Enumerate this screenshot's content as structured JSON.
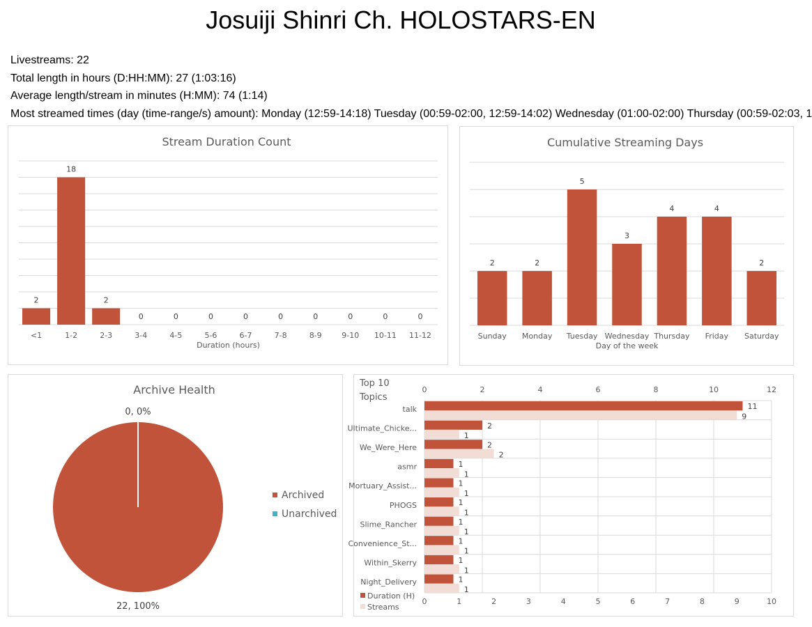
{
  "page": {
    "title": "Josuiji Shinri Ch. HOLOSTARS-EN",
    "stats": {
      "livestreams": "Livestreams: 22",
      "total_length": "Total length in hours (D:HH:MM): 27 (1:03:16)",
      "average_length": "Average length/stream in minutes (H:MM): 74 (1:14)",
      "most_streamed": "Most streamed times (day (time-range/s) amount): Monday (12:59-14:18) Tuesday (00:59-02:00, 12:59-14:02) Wednesday (01:00-02:00) Thursday (00:59-02:03, 1"
    }
  },
  "colors": {
    "primary": "#c0533a",
    "secondary": "#f2dcd6",
    "unarchived": "#4bacc6",
    "grid": "#d9d9d9",
    "axis_text": "#595959"
  },
  "chart_data": [
    {
      "type": "bar",
      "title": "Stream Duration Count",
      "xlabel": "Duration (hours)",
      "ylabel": "",
      "categories": [
        "<1",
        "1-2",
        "2-3",
        "3-4",
        "4-5",
        "5-6",
        "6-7",
        "7-8",
        "8-9",
        "9-10",
        "10-11",
        "11-12"
      ],
      "values": [
        2,
        18,
        2,
        0,
        0,
        0,
        0,
        0,
        0,
        0,
        0,
        0
      ],
      "ylim": [
        0,
        20
      ],
      "grid": true,
      "data_labels": true
    },
    {
      "type": "bar",
      "title": "Cumulative Streaming Days",
      "xlabel": "Day of the week",
      "ylabel": "",
      "categories": [
        "Sunday",
        "Monday",
        "Tuesday",
        "Wednesday",
        "Thursday",
        "Friday",
        "Saturday"
      ],
      "values": [
        2,
        2,
        5,
        3,
        4,
        4,
        2
      ],
      "ylim": [
        0,
        6
      ],
      "grid": true,
      "data_labels": true
    },
    {
      "type": "pie",
      "title": "Archive Health",
      "categories": [
        "Archived",
        "Unarchived"
      ],
      "values": [
        22,
        0
      ],
      "data_labels": [
        "22, 100%",
        "0, 0%"
      ],
      "legend": "right"
    },
    {
      "type": "bar",
      "orientation": "horizontal",
      "title": "Top 10 Topics",
      "categories": [
        "talk",
        "Ultimate_Chicke...",
        "We_Were_Here",
        "asmr",
        "Mortuary_Assist...",
        "PHOGS",
        "Slime_Rancher",
        "Convenience_St...",
        "Within_Skerry",
        "Night_Delivery"
      ],
      "series": [
        {
          "name": "Duration (H)",
          "values": [
            11,
            2,
            2,
            1,
            1,
            1,
            1,
            1,
            1,
            1
          ],
          "axis": "top",
          "ticks": [
            0,
            2,
            4,
            6,
            8,
            10,
            12
          ],
          "xlim": [
            0,
            12
          ]
        },
        {
          "name": "Streams",
          "values": [
            9,
            1,
            2,
            1,
            1,
            1,
            1,
            1,
            1,
            1
          ],
          "axis": "bottom",
          "ticks": [
            0,
            1,
            2,
            3,
            4,
            5,
            6,
            7,
            8,
            9,
            10
          ],
          "xlim": [
            0,
            10
          ]
        }
      ],
      "legend": "bottom-left",
      "grid": true,
      "data_labels": true
    }
  ]
}
